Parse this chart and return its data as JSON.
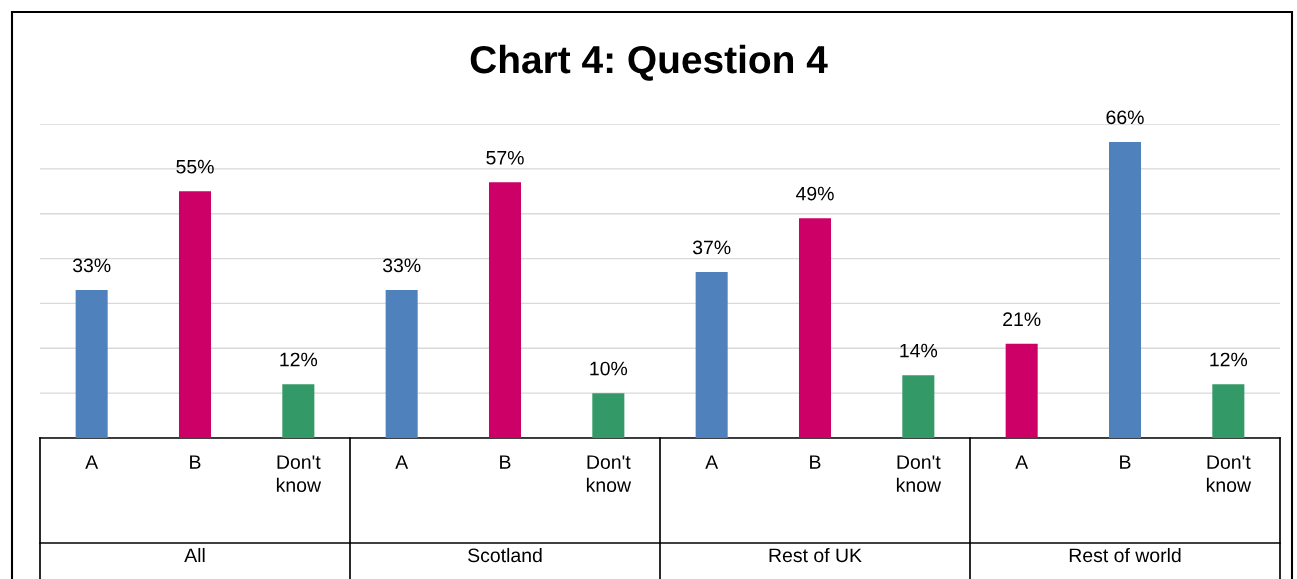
{
  "chart_data": {
    "type": "bar",
    "title": "Chart 4: Question 4",
    "categories": [
      "A",
      "B",
      "Don't know",
      "A",
      "B",
      "Don't know",
      "A",
      "B",
      "Don't know",
      "A",
      "B",
      "Don't know"
    ],
    "annotations": [
      "All",
      "Scotland",
      "Rest of UK",
      "Rest of world"
    ],
    "values": [
      33,
      55,
      12,
      33,
      57,
      10,
      37,
      49,
      14,
      21,
      66,
      12
    ],
    "colors": [
      "#4f81bd",
      "#cc0066",
      "#339966",
      "#4f81bd",
      "#cc0066",
      "#339966",
      "#4f81bd",
      "#cc0066",
      "#339966",
      "#cc0066",
      "#4f81bd",
      "#339966"
    ],
    "value_labels": [
      "33%",
      "55%",
      "12%",
      "33%",
      "57%",
      "10%",
      "37%",
      "49%",
      "14%",
      "21%",
      "66%",
      "12%"
    ],
    "ylim": [
      0,
      70
    ],
    "yticks": [
      {
        "value": 0,
        "label": null
      },
      {
        "value": 10,
        "label": null
      },
      {
        "value": 20,
        "label": null
      },
      {
        "value": 30,
        "label": null
      },
      {
        "value": 40,
        "label": null
      },
      {
        "value": 50,
        "label": null
      },
      {
        "value": 60,
        "label": null
      },
      {
        "value": 70,
        "label": null
      }
    ],
    "grid": "y",
    "tick_labels": "x"
  }
}
